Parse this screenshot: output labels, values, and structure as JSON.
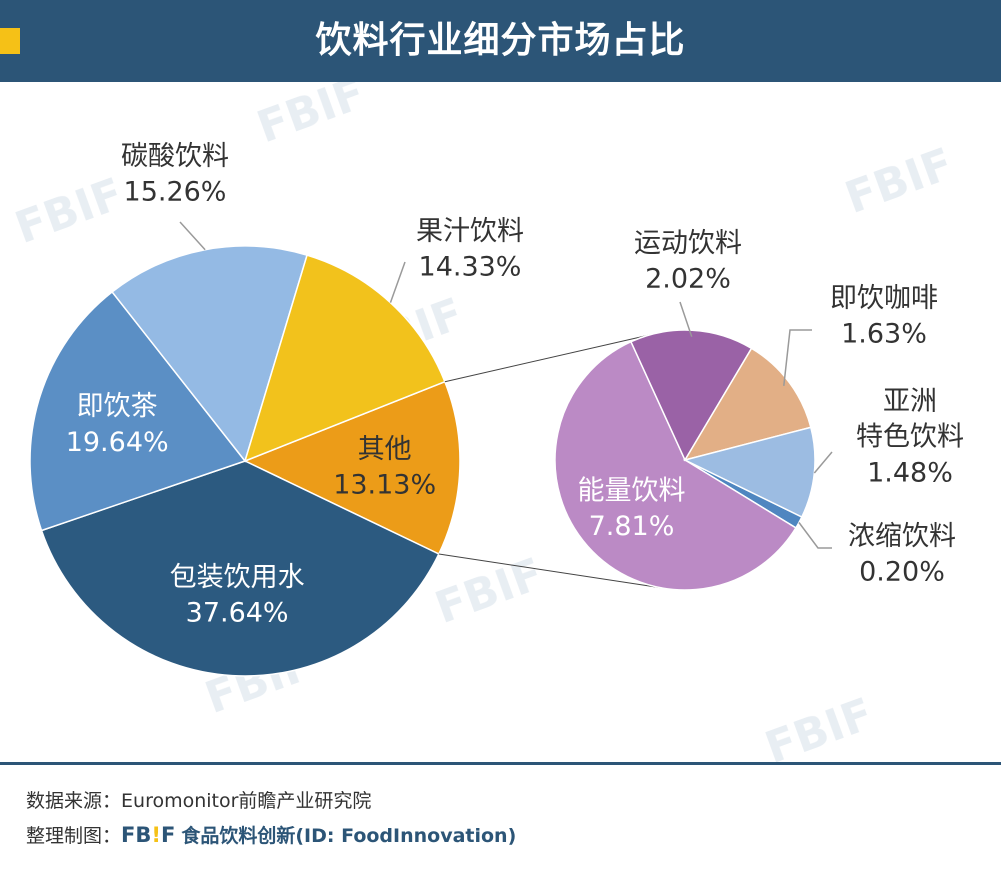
{
  "header": {
    "title": "饮料行业细分市场占比"
  },
  "chart_data": {
    "type": "pie",
    "title": "饮料行业细分市场占比",
    "unit": "%",
    "main_pie": {
      "slices": [
        {
          "label": "包装饮用水",
          "value": 37.64,
          "value_text": "37.64%",
          "color": "#2c5a80"
        },
        {
          "label": "即饮茶",
          "value": 19.64,
          "value_text": "19.64%",
          "color": "#5b8fc5"
        },
        {
          "label": "碳酸饮料",
          "value": 15.26,
          "value_text": "15.26%",
          "color": "#94bae4"
        },
        {
          "label": "果汁饮料",
          "value": 14.33,
          "value_text": "14.33%",
          "color": "#f2c21c"
        },
        {
          "label": "其他",
          "value": 13.13,
          "value_text": "13.13%",
          "color": "#ec9c18"
        }
      ]
    },
    "sub_pie": {
      "parent": "其他",
      "slices": [
        {
          "label": "能量饮料",
          "value": 7.81,
          "value_text": "7.81%",
          "color": "#bb8ac5"
        },
        {
          "label": "运动饮料",
          "value": 2.02,
          "value_text": "2.02%",
          "color": "#9a62a6"
        },
        {
          "label": "即饮咖啡",
          "value": 1.63,
          "value_text": "1.63%",
          "color": "#e2af86"
        },
        {
          "label": "亚洲特色饮料",
          "label_lines": [
            "亚洲",
            "特色饮料"
          ],
          "value": 1.48,
          "value_text": "1.48%",
          "color": "#9cbce2"
        },
        {
          "label": "浓缩饮料",
          "value": 0.2,
          "value_text": "0.20%",
          "color": "#4f86c0"
        }
      ]
    }
  },
  "footer": {
    "source_label": "数据来源：",
    "source_text": "Euromonitor前瞻产业研究院",
    "made_label": "整理制图：",
    "logo_text_a": "FB",
    "logo_text_bang": "!",
    "logo_text_b": "F",
    "brand": "食品饮料创新",
    "brand_id": "(ID: FoodInnovation)"
  }
}
